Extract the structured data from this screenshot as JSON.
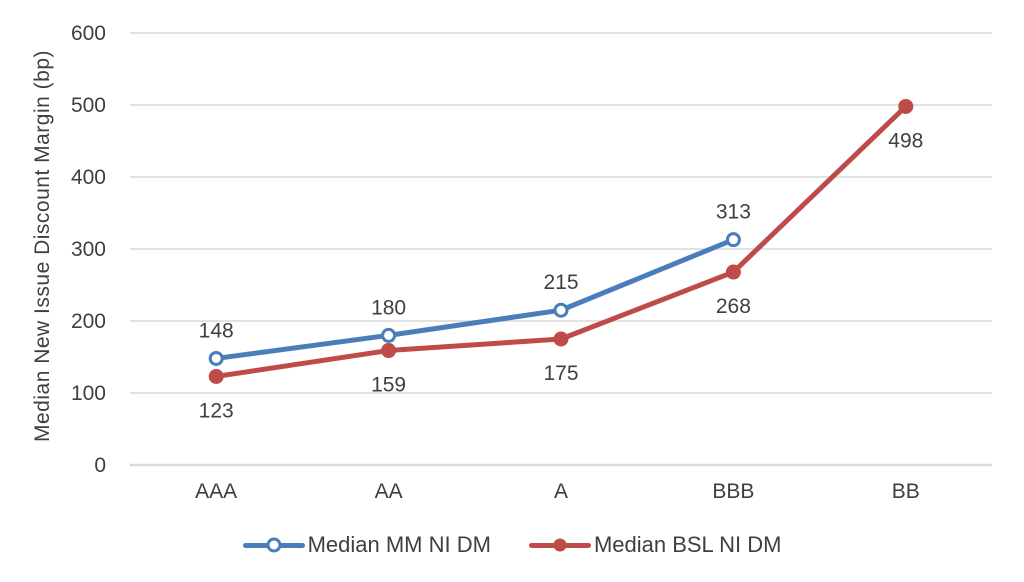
{
  "chart_data": {
    "type": "line",
    "title": "",
    "xlabel": "",
    "ylabel": "Median New Issue Discount Margin (bp)",
    "categories": [
      "AAA",
      "AA",
      "A",
      "BBB",
      "BB"
    ],
    "series": [
      {
        "name": "Median MM NI DM",
        "color": "#4A7EBB",
        "marker": "open-circle",
        "label_position": "above",
        "values": [
          148,
          180,
          215,
          313,
          null
        ]
      },
      {
        "name": "Median BSL NI DM",
        "color": "#BE4B48",
        "marker": "filled-circle",
        "label_position": "below",
        "values": [
          123,
          159,
          175,
          268,
          498
        ]
      }
    ],
    "ylim": [
      0,
      600
    ],
    "ytick_step": 100,
    "ytick_labels": [
      "0",
      "100",
      "200",
      "300",
      "400",
      "500",
      "600"
    ],
    "grid": true,
    "legend_position": "bottom",
    "colors": {
      "grid": "#D9D9D9",
      "axis_line": "#D9D9D9",
      "axis_text": "#3F3F3F",
      "data_label": "#404040",
      "background": "#FFFFFF"
    }
  }
}
